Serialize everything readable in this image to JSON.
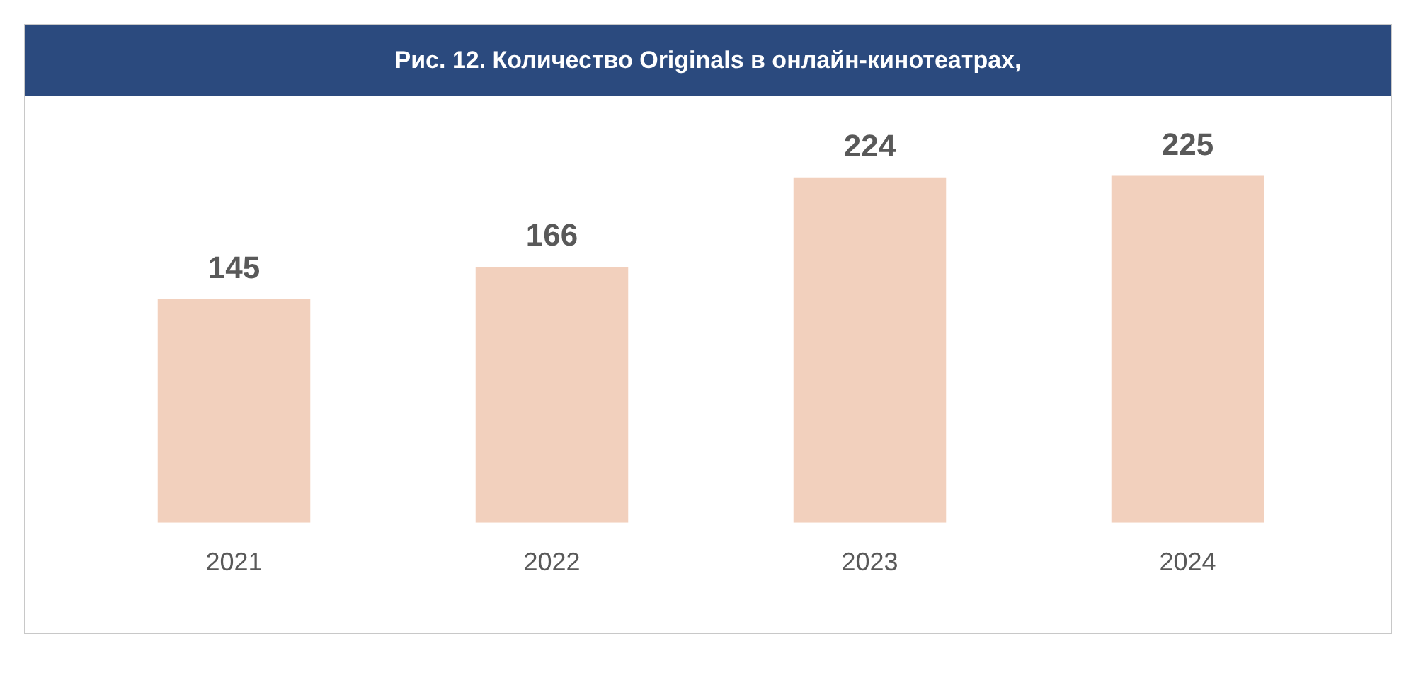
{
  "chart_data": {
    "type": "bar",
    "title": "Рис. 12. Количество Originals в онлайн-кинотеатрах,",
    "categories": [
      "2021",
      "2022",
      "2023",
      "2024"
    ],
    "values": [
      145,
      166,
      224,
      225
    ],
    "color": "#f2d0bd",
    "data_labels": true,
    "grid": false,
    "legend": false
  }
}
